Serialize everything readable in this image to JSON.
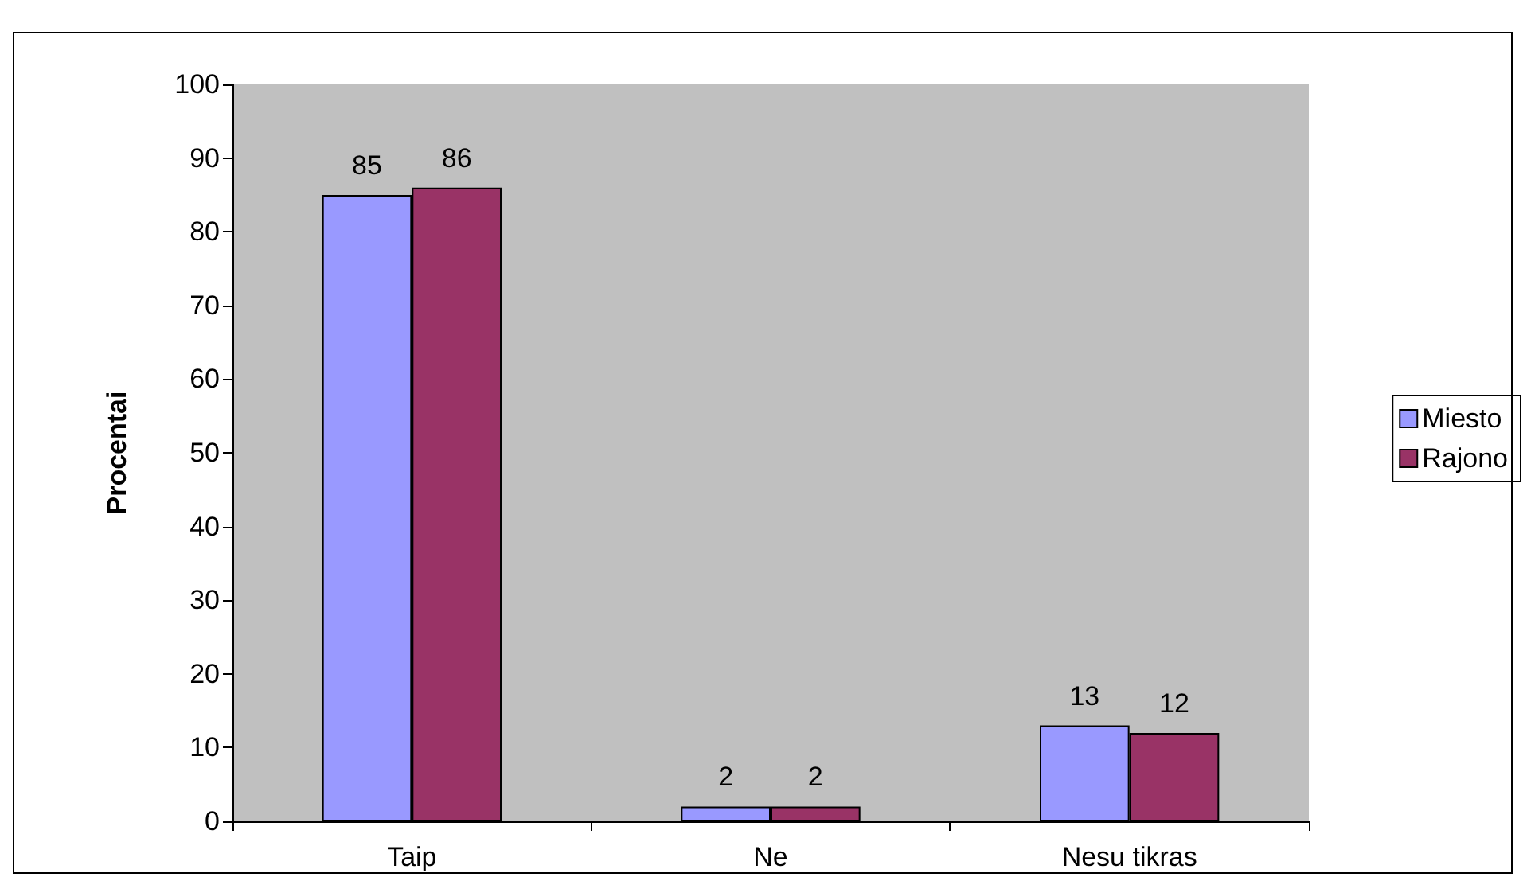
{
  "chart_data": {
    "type": "bar",
    "ylabel": "Procentai",
    "categories": [
      "Taip",
      "Ne",
      "Nesu tikras"
    ],
    "series": [
      {
        "name": "Miesto",
        "color": "#9999ff",
        "values": [
          85,
          2,
          13
        ]
      },
      {
        "name": "Rajono",
        "color": "#993366",
        "values": [
          86,
          2,
          12
        ]
      }
    ],
    "ylim": [
      0,
      100
    ],
    "yticks": [
      0,
      10,
      20,
      30,
      40,
      50,
      60,
      70,
      80,
      90,
      100
    ],
    "grid": false,
    "legend": "right",
    "data_labels": true
  }
}
